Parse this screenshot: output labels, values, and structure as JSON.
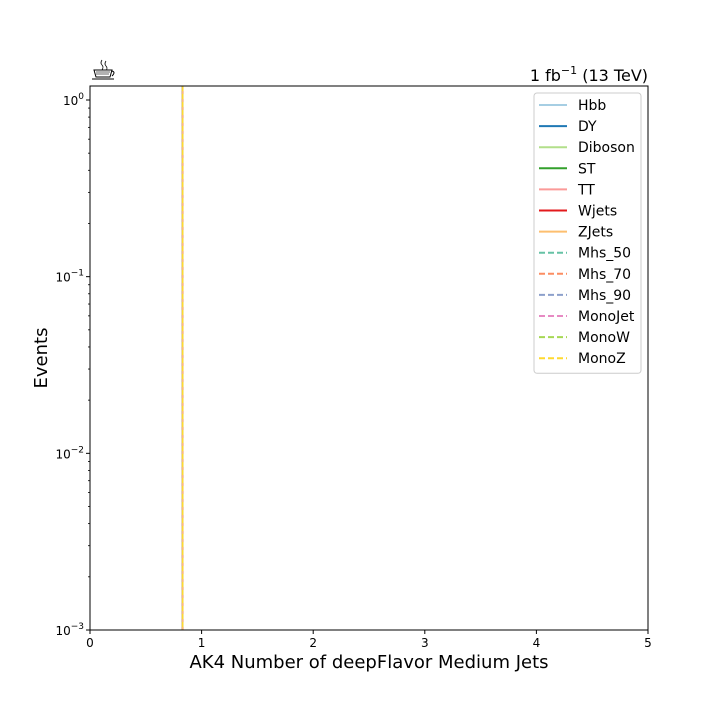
{
  "chart_data": {
    "type": "line",
    "title": "",
    "lumi_label": "1 fb",
    "lumi_exponent": "−1",
    "lumi_suffix": " (13 TeV)",
    "xlabel": "AK4 Number of deepFlavor Medium Jets",
    "ylabel": "Events",
    "xlim": [
      0,
      5
    ],
    "ylim": [
      0.001,
      1.2
    ],
    "yscale": "log",
    "xticks": [
      0,
      1,
      2,
      3,
      4,
      5
    ],
    "xtick_labels": [
      "0",
      "1",
      "2",
      "3",
      "4",
      "5"
    ],
    "yticks": [
      0.001,
      0.01,
      0.1,
      1
    ],
    "ytick_labels": [
      {
        "base": "10",
        "exp": "−3"
      },
      {
        "base": "10",
        "exp": "−2"
      },
      {
        "base": "10",
        "exp": "−1"
      },
      {
        "base": "10",
        "exp": "0"
      }
    ],
    "legend_position": "top-right",
    "vertical_line_x": 0.83,
    "series": [
      {
        "name": "Hbb",
        "color": "#a6cee3",
        "style": "solid"
      },
      {
        "name": "DY",
        "color": "#1f78b4",
        "style": "solid"
      },
      {
        "name": "Diboson",
        "color": "#b2df8a",
        "style": "solid"
      },
      {
        "name": "ST",
        "color": "#33a02c",
        "style": "solid"
      },
      {
        "name": "TT",
        "color": "#fb9a99",
        "style": "solid"
      },
      {
        "name": "Wjets",
        "color": "#e31a1c",
        "style": "solid"
      },
      {
        "name": "ZJets",
        "color": "#fdbf6f",
        "style": "solid"
      },
      {
        "name": "Mhs_50",
        "color": "#66c2a5",
        "style": "dashed"
      },
      {
        "name": "Mhs_70",
        "color": "#fc8d62",
        "style": "dashed"
      },
      {
        "name": "Mhs_90",
        "color": "#8da0cb",
        "style": "dashed"
      },
      {
        "name": "MonoJet",
        "color": "#e78ac3",
        "style": "dashed"
      },
      {
        "name": "MonoW",
        "color": "#a6d854",
        "style": "dashed"
      },
      {
        "name": "MonoZ",
        "color": "#ffd92f",
        "style": "dashed"
      }
    ]
  }
}
